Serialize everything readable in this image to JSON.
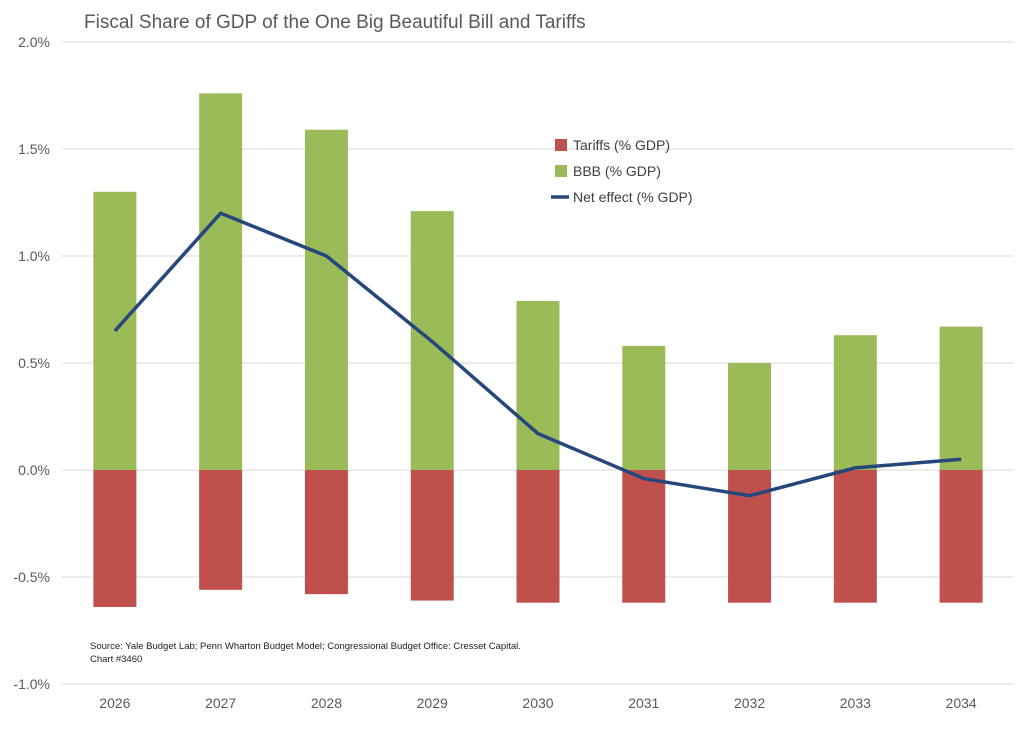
{
  "chart_data": {
    "type": "bar",
    "title": "Fiscal Share of GDP of the One Big Beautiful Bill and Tariffs",
    "categories": [
      "2026",
      "2027",
      "2028",
      "2029",
      "2030",
      "2031",
      "2032",
      "2033",
      "2034"
    ],
    "series": [
      {
        "name": "Tariffs (% GDP)",
        "type": "bar",
        "color": "#C0504D",
        "values": [
          -0.64,
          -0.56,
          -0.58,
          -0.61,
          -0.62,
          -0.62,
          -0.62,
          -0.62,
          -0.62
        ]
      },
      {
        "name": "BBB (% GDP)",
        "type": "bar",
        "color": "#9BBB59",
        "values": [
          1.3,
          1.76,
          1.59,
          1.21,
          0.79,
          0.58,
          0.5,
          0.63,
          0.67
        ]
      },
      {
        "name": "Net effect (% GDP)",
        "type": "line",
        "color": "#25477B",
        "values": [
          0.65,
          1.2,
          1.0,
          0.6,
          0.17,
          -0.04,
          -0.12,
          0.01,
          0.05
        ]
      }
    ],
    "ylim": [
      -1.0,
      2.0
    ],
    "yticks": [
      "-1.0%",
      "-0.5%",
      "0.0%",
      "0.5%",
      "1.0%",
      "1.5%",
      "2.0%"
    ],
    "ytick_values": [
      -1.0,
      -0.5,
      0.0,
      0.5,
      1.0,
      1.5,
      2.0
    ],
    "grid": true,
    "legend": "upper-center-right",
    "xlabel": "",
    "ylabel": ""
  },
  "source": "Source: Yale Budget Lab; Penn Wharton Budget Model; Congressional Budget Office: Cresset Capital.",
  "chart_number": "Chart #3460"
}
